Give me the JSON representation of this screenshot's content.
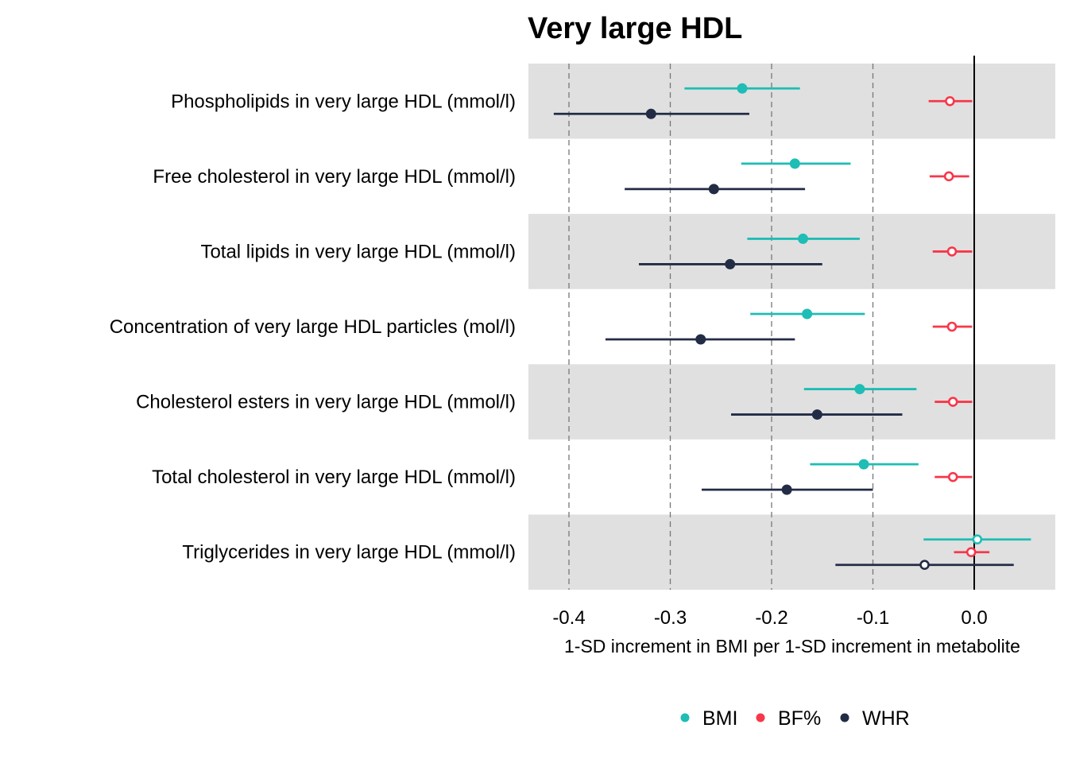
{
  "chart_data": {
    "type": "scatter",
    "title": "Very large HDL",
    "xlabel": "1-SD increment in BMI per 1-SD increment in metabolite",
    "xlim": [
      -0.44,
      0.08
    ],
    "xticks": [
      "-0.4",
      "-0.3",
      "-0.2",
      "-0.1",
      "0.0"
    ],
    "xtick_values": [
      -0.4,
      -0.3,
      -0.2,
      -0.1,
      0.0
    ],
    "reference_lines": {
      "dashed": [
        -0.4,
        -0.3,
        -0.2,
        -0.1
      ],
      "solid": [
        0.0
      ]
    },
    "legend_position": "bottom",
    "categories": [
      "Phospholipids in very large HDL (mmol/l)",
      "Free cholesterol in very large HDL (mmol/l)",
      "Total lipids in very large HDL (mmol/l)",
      "Concentration of very large HDL particles (mol/l)",
      "Cholesterol esters in very large HDL (mmol/l)",
      "Total cholesterol in very large HDL (mmol/l)",
      "Triglycerides in very large HDL (mmol/l)"
    ],
    "series": [
      {
        "name": "BMI",
        "color": "#1ebdb5",
        "estimates": [
          -0.229,
          -0.177,
          -0.169,
          -0.165,
          -0.113,
          -0.109,
          0.003
        ],
        "lower": [
          -0.286,
          -0.23,
          -0.224,
          -0.221,
          -0.168,
          -0.162,
          -0.05
        ],
        "upper": [
          -0.172,
          -0.122,
          -0.113,
          -0.108,
          -0.057,
          -0.055,
          0.056
        ],
        "hollow": [
          false,
          false,
          false,
          false,
          false,
          false,
          true
        ]
      },
      {
        "name": "BF%",
        "color": "#f8374a",
        "estimates": [
          -0.024,
          -0.025,
          -0.022,
          -0.022,
          -0.021,
          -0.021,
          -0.003
        ],
        "lower": [
          -0.045,
          -0.044,
          -0.041,
          -0.041,
          -0.039,
          -0.039,
          -0.02
        ],
        "upper": [
          -0.002,
          -0.005,
          -0.002,
          -0.002,
          -0.002,
          -0.002,
          0.015
        ],
        "hollow": [
          true,
          true,
          true,
          true,
          true,
          true,
          true
        ]
      },
      {
        "name": "WHR",
        "color": "#232c45",
        "estimates": [
          -0.319,
          -0.257,
          -0.241,
          -0.27,
          -0.155,
          -0.185,
          -0.049
        ],
        "lower": [
          -0.415,
          -0.345,
          -0.331,
          -0.364,
          -0.24,
          -0.269,
          -0.137
        ],
        "upper": [
          -0.222,
          -0.167,
          -0.15,
          -0.177,
          -0.071,
          -0.1,
          0.039
        ],
        "hollow": [
          false,
          false,
          false,
          false,
          false,
          false,
          true
        ]
      }
    ]
  }
}
